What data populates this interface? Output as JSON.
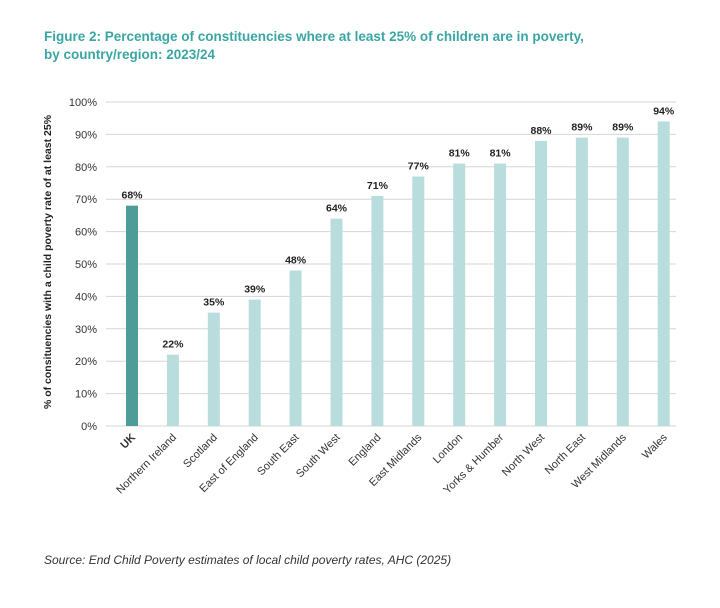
{
  "title_line1": "Figure 2: Percentage of constituencies where at least 25% of children are in poverty,",
  "title_line2": "by country/region: 2023/24",
  "source": "Source: End Child Poverty estimates of local child poverty rates, AHC (2025)",
  "colors": {
    "title": "#3aa6a3",
    "highlight_bar": "#4d9c98",
    "bar": "#b9dcdd",
    "grid": "#d6d6d6"
  },
  "chart_data": {
    "type": "bar",
    "title": "Figure 2: Percentage of constituencies where at least 25% of children are in poverty, by country/region: 2023/24",
    "ylabel": "% of consituencies with a child poverty rate of at least 25%",
    "xlabel": "",
    "ylim": [
      0,
      100
    ],
    "yticks": [
      "0%",
      "10%",
      "20%",
      "30%",
      "40%",
      "50%",
      "60%",
      "70%",
      "80%",
      "90%",
      "100%"
    ],
    "grid": true,
    "categories": [
      "UK",
      "Northern Ireland",
      "Scotland",
      "East of England",
      "South East",
      "South West",
      "England",
      "East Midlands",
      "London",
      "Yorks & Humber",
      "North West",
      "North East",
      "West Midlands",
      "Wales"
    ],
    "values": [
      68,
      22,
      35,
      39,
      48,
      64,
      71,
      77,
      81,
      81,
      88,
      89,
      89,
      94
    ],
    "data_labels": [
      "68%",
      "22%",
      "35%",
      "39%",
      "48%",
      "64%",
      "71%",
      "77%",
      "81%",
      "81%",
      "88%",
      "89%",
      "89%",
      "94%"
    ],
    "highlight_category": "UK"
  }
}
